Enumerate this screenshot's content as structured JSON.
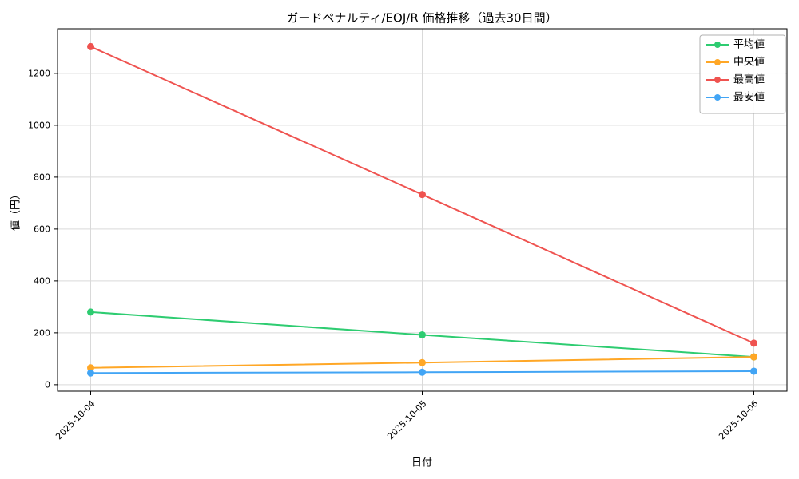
{
  "chart_data": {
    "type": "line",
    "title": "ガードペナルティ/EOJ/R 価格推移（過去30日間）",
    "xlabel": "日付",
    "ylabel": "値（円）",
    "categories": [
      "2025-10-04",
      "2025-10-05",
      "2025-10-06"
    ],
    "series": [
      {
        "name": "平均値",
        "color": "#2ecc71",
        "values": [
          280,
          192,
          107
        ]
      },
      {
        "name": "中央値",
        "color": "#ffa726",
        "values": [
          65,
          85,
          107
        ]
      },
      {
        "name": "最高値",
        "color": "#ef5350",
        "values": [
          1303,
          733,
          160
        ]
      },
      {
        "name": "最安値",
        "color": "#42a5f5",
        "values": [
          45,
          48,
          52
        ]
      }
    ],
    "yticks": [
      0,
      200,
      400,
      600,
      800,
      1000,
      1200
    ],
    "ylim": [
      -25,
      1372
    ],
    "grid": true,
    "legend_position": "top-right",
    "legend_labels": [
      "平均値",
      "中央値",
      "最高値",
      "最安値"
    ]
  }
}
